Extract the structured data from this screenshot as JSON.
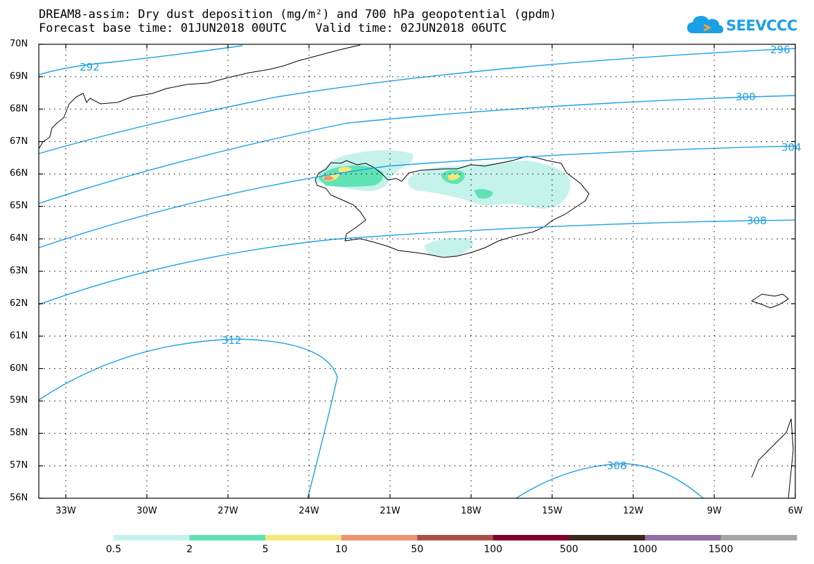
{
  "title": {
    "line1": "DREAM8-assim: Dry dust deposition (mg/m²) and 700 hPa geopotential (gpdm)",
    "line2": "Forecast base time: 01JUN2018 00UTC    Valid time: 02JUN2018 06UTC"
  },
  "logo": {
    "text": "SEEVCCC",
    "icon": "cloud-logo-icon",
    "color": "#1aa0e6"
  },
  "map": {
    "lat_labels": [
      "70N",
      "69N",
      "68N",
      "67N",
      "66N",
      "65N",
      "64N",
      "63N",
      "62N",
      "61N",
      "60N",
      "59N",
      "58N",
      "57N",
      "56N"
    ],
    "lon_labels": [
      "33W",
      "30W",
      "27W",
      "24W",
      "21W",
      "18W",
      "15W",
      "12W",
      "9W",
      "6W"
    ],
    "lat_range": [
      56,
      70
    ],
    "lon_range": [
      -34,
      -6
    ],
    "contour_color": "#1aa0e6",
    "contour_labels": [
      "292",
      "296",
      "300",
      "304",
      "308",
      "312",
      "308"
    ],
    "grid": "dotted"
  },
  "colorbar": {
    "labels": [
      "0.5",
      "2",
      "5",
      "10",
      "50",
      "100",
      "500",
      "1000",
      "1500"
    ],
    "colors": [
      "#c6f2ec",
      "#5fe3b4",
      "#f5e87a",
      "#ea9472",
      "#a85048",
      "#800028",
      "#3a2a1e",
      "#8f6fa6",
      "#a6a6a6"
    ]
  }
}
